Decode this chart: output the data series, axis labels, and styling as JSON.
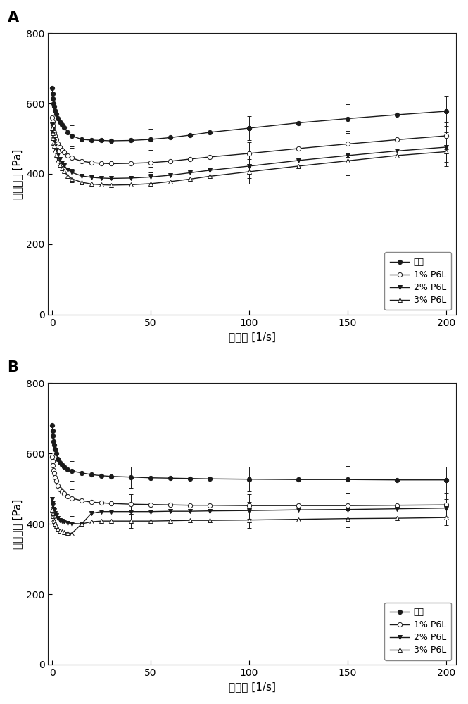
{
  "panel_A": {
    "label": "A",
    "series": {
      "control": {
        "name": "对照",
        "x": [
          0.1,
          0.3,
          0.5,
          0.8,
          1,
          1.5,
          2,
          3,
          4,
          5,
          6,
          8,
          10,
          15,
          20,
          25,
          30,
          40,
          50,
          60,
          70,
          80,
          100,
          125,
          150,
          175,
          200
        ],
        "y": [
          645,
          628,
          615,
          600,
          592,
          580,
          570,
          558,
          548,
          540,
          532,
          518,
          508,
          498,
          496,
          495,
          494,
          495,
          498,
          503,
          510,
          518,
          530,
          545,
          557,
          568,
          578
        ],
        "yerr": [
          0,
          0,
          0,
          0,
          0,
          0,
          0,
          0,
          0,
          0,
          0,
          0,
          30,
          0,
          0,
          0,
          0,
          0,
          30,
          0,
          0,
          0,
          35,
          0,
          42,
          0,
          42
        ],
        "marker": "o",
        "fillstyle": "full"
      },
      "p1": {
        "name": "1% P6L",
        "x": [
          0.1,
          0.3,
          0.5,
          0.8,
          1,
          1.5,
          2,
          3,
          4,
          5,
          6,
          8,
          10,
          15,
          20,
          25,
          30,
          40,
          50,
          60,
          70,
          80,
          100,
          125,
          150,
          175,
          200
        ],
        "y": [
          560,
          548,
          538,
          525,
          518,
          508,
          498,
          485,
          475,
          468,
          462,
          452,
          445,
          436,
          432,
          430,
          429,
          430,
          432,
          436,
          442,
          448,
          458,
          472,
          485,
          497,
          508
        ],
        "yerr": [
          0,
          0,
          0,
          0,
          0,
          0,
          0,
          0,
          0,
          0,
          0,
          0,
          28,
          0,
          0,
          0,
          0,
          0,
          28,
          0,
          0,
          0,
          32,
          0,
          38,
          0,
          38
        ],
        "marker": "o",
        "fillstyle": "none"
      },
      "p2": {
        "name": "2% P6L",
        "x": [
          0.1,
          0.3,
          0.5,
          0.8,
          1,
          1.5,
          2,
          3,
          4,
          5,
          6,
          8,
          10,
          15,
          20,
          25,
          30,
          40,
          50,
          60,
          70,
          80,
          100,
          125,
          150,
          175,
          200
        ],
        "y": [
          540,
          526,
          514,
          500,
          492,
          480,
          468,
          453,
          441,
          432,
          424,
          412,
          404,
          394,
          390,
          388,
          387,
          388,
          391,
          396,
          403,
          410,
          422,
          438,
          452,
          465,
          476
        ],
        "yerr": [
          0,
          0,
          0,
          0,
          0,
          0,
          0,
          0,
          0,
          0,
          0,
          0,
          28,
          0,
          0,
          0,
          0,
          0,
          28,
          0,
          0,
          0,
          35,
          0,
          40,
          0,
          42
        ],
        "marker": "v",
        "fillstyle": "full"
      },
      "p3": {
        "name": "3% P6L",
        "x": [
          0.1,
          0.3,
          0.5,
          0.8,
          1,
          1.5,
          2,
          3,
          4,
          5,
          6,
          8,
          10,
          15,
          20,
          25,
          30,
          40,
          50,
          60,
          70,
          80,
          100,
          125,
          150,
          175,
          200
        ],
        "y": [
          530,
          515,
          502,
          488,
          479,
          466,
          453,
          437,
          425,
          415,
          407,
          394,
          386,
          376,
          371,
          369,
          368,
          369,
          372,
          378,
          385,
          393,
          406,
          422,
          437,
          452,
          463
        ],
        "yerr": [
          0,
          0,
          0,
          0,
          0,
          0,
          0,
          0,
          0,
          0,
          0,
          0,
          28,
          0,
          0,
          0,
          0,
          0,
          28,
          0,
          0,
          0,
          35,
          0,
          42,
          0,
          42
        ],
        "marker": "^",
        "fillstyle": "none"
      }
    },
    "ylim": [
      0,
      800
    ],
    "xlim": [
      -2,
      205
    ],
    "yticks": [
      0,
      200,
      400,
      600,
      800
    ],
    "xticks": [
      0,
      50,
      100,
      150,
      200
    ],
    "ylabel": "剪切应力 [Pa]",
    "xlabel": "剪切率 [1/s]"
  },
  "panel_B": {
    "label": "B",
    "series": {
      "control": {
        "name": "对照",
        "x": [
          0.1,
          0.3,
          0.5,
          0.8,
          1,
          1.5,
          2,
          3,
          4,
          5,
          6,
          8,
          10,
          15,
          20,
          25,
          30,
          40,
          50,
          60,
          70,
          80,
          100,
          125,
          150,
          175,
          200
        ],
        "y": [
          680,
          665,
          650,
          635,
          625,
          612,
          600,
          585,
          575,
          568,
          562,
          555,
          550,
          545,
          540,
          537,
          535,
          533,
          531,
          530,
          529,
          528,
          527,
          526,
          526,
          525,
          525
        ],
        "yerr": [
          0,
          0,
          0,
          0,
          0,
          0,
          0,
          0,
          0,
          0,
          0,
          0,
          28,
          0,
          0,
          0,
          0,
          30,
          0,
          0,
          0,
          0,
          35,
          0,
          38,
          0,
          38
        ],
        "marker": "o",
        "fillstyle": "full"
      },
      "p1": {
        "name": "1% P6L",
        "x": [
          0.1,
          0.3,
          0.5,
          0.8,
          1,
          1.5,
          2,
          3,
          4,
          5,
          6,
          8,
          10,
          15,
          20,
          25,
          30,
          40,
          50,
          60,
          70,
          80,
          100,
          125,
          150,
          175,
          200
        ],
        "y": [
          590,
          578,
          566,
          553,
          545,
          533,
          522,
          508,
          499,
          492,
          486,
          478,
          473,
          466,
          462,
          460,
          458,
          456,
          455,
          454,
          453,
          453,
          452,
          452,
          452,
          453,
          454
        ],
        "yerr": [
          0,
          0,
          0,
          0,
          0,
          0,
          0,
          0,
          0,
          0,
          0,
          0,
          26,
          0,
          0,
          0,
          0,
          28,
          0,
          0,
          0,
          0,
          32,
          0,
          36,
          0,
          35
        ],
        "marker": "o",
        "fillstyle": "none"
      },
      "p2": {
        "name": "2% P6L",
        "x": [
          0.1,
          0.3,
          0.5,
          0.8,
          1,
          1.5,
          2,
          3,
          4,
          5,
          6,
          8,
          10,
          15,
          20,
          25,
          30,
          40,
          50,
          60,
          70,
          80,
          100,
          125,
          150,
          175,
          200
        ],
        "y": [
          470,
          460,
          452,
          443,
          438,
          430,
          424,
          416,
          411,
          408,
          406,
          403,
          401,
          400,
          430,
          435,
          435,
          435,
          435,
          436,
          436,
          437,
          438,
          440,
          441,
          443,
          445
        ],
        "yerr": [
          0,
          0,
          0,
          0,
          0,
          0,
          0,
          0,
          0,
          0,
          0,
          0,
          22,
          0,
          0,
          0,
          0,
          22,
          0,
          0,
          0,
          0,
          24,
          0,
          26,
          0,
          25
        ],
        "marker": "v",
        "fillstyle": "full"
      },
      "p3": {
        "name": "3% P6L",
        "x": [
          0.1,
          0.3,
          0.5,
          0.8,
          1,
          1.5,
          2,
          3,
          4,
          5,
          6,
          8,
          10,
          15,
          20,
          25,
          30,
          40,
          50,
          60,
          70,
          80,
          100,
          125,
          150,
          175,
          200
        ],
        "y": [
          440,
          430,
          422,
          413,
          408,
          400,
          394,
          386,
          381,
          378,
          376,
          374,
          373,
          400,
          406,
          408,
          408,
          408,
          408,
          409,
          410,
          410,
          411,
          413,
          415,
          416,
          418
        ],
        "yerr": [
          0,
          0,
          0,
          0,
          0,
          0,
          0,
          0,
          0,
          0,
          0,
          0,
          20,
          0,
          0,
          0,
          0,
          20,
          0,
          0,
          0,
          0,
          22,
          0,
          24,
          0,
          22
        ],
        "marker": "^",
        "fillstyle": "none"
      }
    },
    "ylim": [
      0,
      800
    ],
    "xlim": [
      -2,
      205
    ],
    "yticks": [
      0,
      200,
      400,
      600,
      800
    ],
    "xticks": [
      0,
      50,
      100,
      150,
      200
    ],
    "ylabel": "剪切应力 [Pa]",
    "xlabel": "剪切率 [1/s]"
  },
  "bg_color": "#ffffff",
  "line_color": "#1a1a1a",
  "marker_size": 4.5,
  "line_width": 1.0,
  "capsize": 2.5,
  "elinewidth": 0.7
}
